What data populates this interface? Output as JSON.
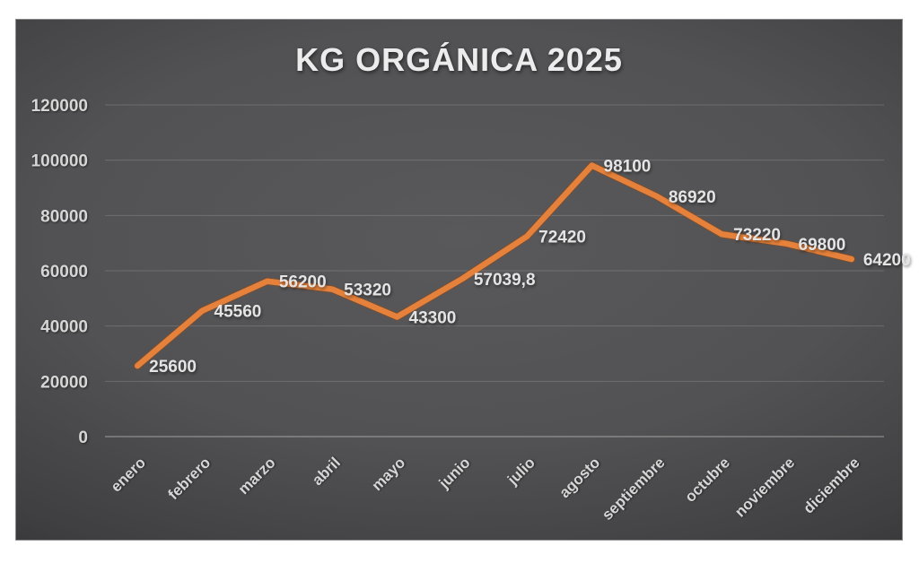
{
  "chart_data": {
    "type": "line",
    "title": "KG ORGÁNICA 2025",
    "categories": [
      "enero",
      "febrero",
      "marzo",
      "abril",
      "mayo",
      "junio",
      "julio",
      "agosto",
      "septiembre",
      "octubre",
      "noviembre",
      "diciembre"
    ],
    "series": [
      {
        "name": "KG ORGÁNICA 2025",
        "values": [
          25600,
          45560,
          56200,
          53320,
          43300,
          57039.8,
          72420,
          98100,
          86920,
          73220,
          69800,
          64200
        ],
        "value_labels": [
          "25600",
          "45560",
          "56200",
          "53320",
          "43300",
          "57039,8",
          "72420",
          "98100",
          "86920",
          "73220",
          "69800",
          "64200"
        ]
      }
    ],
    "xlabel": "",
    "ylabel": "",
    "ylim": [
      0,
      120000
    ],
    "yticks": [
      0,
      20000,
      40000,
      60000,
      80000,
      100000,
      120000
    ],
    "ytick_labels": [
      "0",
      "20000",
      "40000",
      "60000",
      "80000",
      "100000",
      "120000"
    ],
    "grid": true,
    "legend": false,
    "x_tick_rotation_deg": 45,
    "colors": {
      "line": "#e5813a",
      "line_edge": "#8a4a1e",
      "text": "#d6d6d6",
      "data_label_text": "#e4e4e4",
      "background_center": "#59595b",
      "background_corner": "#1b1b1d",
      "page_background": "#ffffff"
    }
  }
}
